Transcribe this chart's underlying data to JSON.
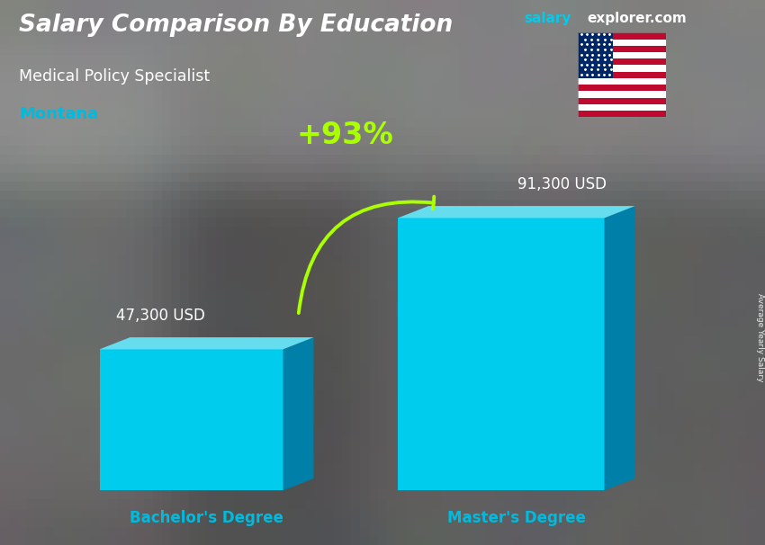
{
  "title": "Salary Comparison By Education",
  "subtitle": "Medical Policy Specialist",
  "location": "Montana",
  "ylabel": "Average Yearly Salary",
  "categories": [
    "Bachelor's Degree",
    "Master's Degree"
  ],
  "values": [
    47300,
    91300
  ],
  "value_labels": [
    "47,300 USD",
    "91,300 USD"
  ],
  "pct_change": "+93%",
  "bar_face_color": "#00CCEE",
  "bar_side_color": "#007FA8",
  "bar_top_color": "#66DDEE",
  "title_color": "#FFFFFF",
  "subtitle_color": "#FFFFFF",
  "location_color": "#00BBDD",
  "label_color": "#FFFFFF",
  "xlabel_color": "#00BBDD",
  "pct_color": "#AAFF00",
  "arrow_color": "#AAFF00",
  "watermark_salary": "salary",
  "watermark_explorer": "explorer.com",
  "watermark_color_salary": "#00CCEE",
  "watermark_color_explorer": "#FFFFFF",
  "figsize": [
    8.5,
    6.06
  ],
  "dpi": 100,
  "bg_noise_color": "#888888",
  "bg_overlay_alpha": 0.38
}
